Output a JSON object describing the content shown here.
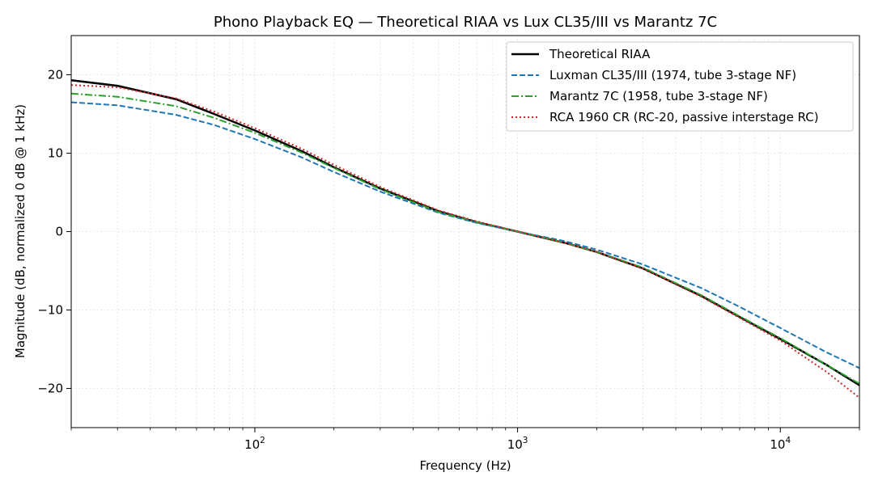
{
  "chart_data": {
    "type": "line",
    "title": "Phono Playback EQ — Theoretical RIAA vs Lux CL35/III vs Marantz 7C",
    "xlabel": "Frequency (Hz)",
    "ylabel": "Magnitude (dB, normalized 0 dB @ 1 kHz)",
    "xscale": "log",
    "xlim": [
      20,
      20000
    ],
    "ylim": [
      -25,
      25
    ],
    "yticks": [
      -20,
      -10,
      0,
      10,
      20
    ],
    "ytick_labels": [
      "−20",
      "−10",
      "0",
      "10",
      "20"
    ],
    "xticks": [
      100,
      1000,
      10000
    ],
    "xtick_labels": [
      {
        "base": "10",
        "exp": "2"
      },
      {
        "base": "10",
        "exp": "3"
      },
      {
        "base": "10",
        "exp": "4"
      }
    ],
    "grid": true,
    "legend_position": "top-right",
    "x": [
      20,
      30,
      50,
      70,
      100,
      150,
      200,
      300,
      500,
      700,
      1000,
      1500,
      2000,
      3000,
      5000,
      7000,
      10000,
      15000,
      20000
    ],
    "series": [
      {
        "name": "Theoretical RIAA",
        "color": "#000000",
        "style": "solid",
        "values": [
          19.3,
          18.6,
          16.9,
          15.0,
          12.9,
          10.3,
          8.2,
          5.5,
          2.6,
          1.2,
          0.0,
          -1.4,
          -2.6,
          -4.7,
          -8.2,
          -10.9,
          -13.7,
          -17.0,
          -19.6
        ]
      },
      {
        "name": "Luxman CL35/III (1974, tube 3-stage NF)",
        "color": "#1f77b4",
        "style": "dashed",
        "values": [
          16.5,
          16.1,
          14.9,
          13.6,
          11.8,
          9.5,
          7.6,
          5.1,
          2.4,
          1.1,
          0.0,
          -1.2,
          -2.3,
          -4.2,
          -7.2,
          -9.6,
          -12.3,
          -15.4,
          -17.4
        ]
      },
      {
        "name": "Marantz 7C (1958, tube 3-stage NF)",
        "color": "#2ca02c",
        "style": "dashdot",
        "values": [
          17.6,
          17.2,
          16.0,
          14.5,
          12.6,
          10.1,
          8.1,
          5.4,
          2.5,
          1.2,
          0.0,
          -1.4,
          -2.6,
          -4.6,
          -8.1,
          -10.8,
          -13.6,
          -17.0,
          -19.4
        ]
      },
      {
        "name": "RCA 1960 CR (RC-20, passive interstage RC)",
        "color": "#d62728",
        "style": "dotted",
        "values": [
          18.7,
          18.4,
          17.0,
          15.3,
          13.2,
          10.6,
          8.5,
          5.7,
          2.7,
          1.3,
          0.0,
          -1.4,
          -2.6,
          -4.7,
          -8.3,
          -11.0,
          -13.9,
          -17.9,
          -21.2
        ]
      }
    ]
  }
}
